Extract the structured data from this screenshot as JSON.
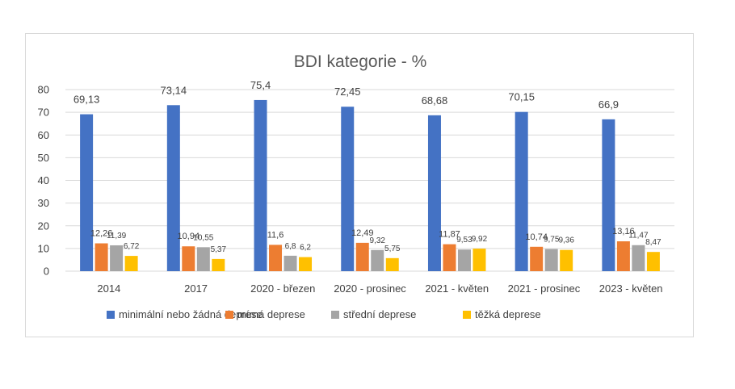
{
  "chart_data": {
    "type": "bar",
    "title": "BDI kategorie - %",
    "xlabel": "",
    "ylabel": "",
    "ylim": [
      0,
      80
    ],
    "yticks": [
      0,
      10,
      20,
      30,
      40,
      50,
      60,
      70,
      80
    ],
    "grid": true,
    "legend_position": "bottom",
    "categories": [
      "2014",
      "2017",
      "2020 - březen",
      "2020 - prosinec",
      "2021 - květen",
      "2021 - prosinec",
      "2023 - květen"
    ],
    "series": [
      {
        "name": "minimální nebo žádná deprese",
        "color": "#4472c4",
        "values": [
          69.13,
          73.14,
          75.4,
          72.45,
          68.68,
          70.15,
          66.9
        ],
        "labels": [
          "69,13",
          "73,14",
          "75,4",
          "72,45",
          "68,68",
          "70,15",
          "66,9"
        ]
      },
      {
        "name": "mírná deprese",
        "color": "#ed7d31",
        "values": [
          12.26,
          10.94,
          11.6,
          12.49,
          11.87,
          10.74,
          13.16
        ],
        "labels": [
          "12,26",
          "10,94",
          "11,6",
          "12,49",
          "11,87",
          "10,74",
          "13,16"
        ]
      },
      {
        "name": "střední deprese",
        "color": "#a5a5a5",
        "values": [
          11.39,
          10.55,
          6.8,
          9.32,
          9.53,
          9.75,
          11.47
        ],
        "labels": [
          "11,39",
          "10,55",
          "6,8",
          "9,32",
          "9,53",
          "9,75",
          "11,47"
        ]
      },
      {
        "name": "těžká deprese",
        "color": "#ffc000",
        "values": [
          6.72,
          5.37,
          6.2,
          5.75,
          9.92,
          9.36,
          8.47
        ],
        "labels": [
          "6,72",
          "5,37",
          "6,2",
          "5,75",
          "9,92",
          "9,36",
          "8,47"
        ]
      }
    ]
  }
}
